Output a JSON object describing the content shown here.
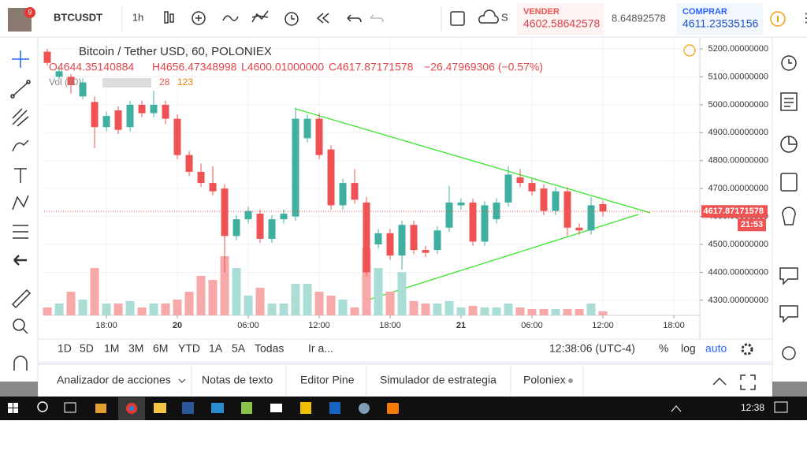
{
  "header": {
    "badge": "9",
    "symbol": "BTCUSDT",
    "interval": "1h",
    "cut_label": "S",
    "sell_label": "VENDER",
    "sell_price": "4602.58642578",
    "spread": "8.64892578",
    "buy_label": "COMPRAR",
    "buy_price": "4611.23535156"
  },
  "legend": {
    "title": "Bitcoin / Tether USD, 60, POLONIEX",
    "open": "O4644.35140884",
    "high": "H4656.47348998",
    "low": "L4600.01000000",
    "close": "C4617.87171578",
    "change": "−26.47969306 (−0.57%)",
    "volume_label": "Vol (10)",
    "volume_a": "28",
    "volume_b": "123"
  },
  "chart_data": {
    "type": "candlestick",
    "open": [
      5190,
      5100,
      5100,
      5030,
      5010,
      4920,
      4980,
      4920,
      5000,
      4970,
      5000,
      4950,
      4820,
      4760,
      4720,
      4700,
      4530,
      4590,
      4610,
      4520,
      4590,
      4600,
      4880,
      4950,
      4840,
      4640,
      4720,
      4650,
      4500,
      4540,
      4460,
      4570,
      4480,
      4480,
      4560,
      4640,
      4650,
      4510,
      4590,
      4650,
      4740,
      4720,
      4700,
      4620,
      4690,
      4560,
      4550,
      4644.35140884
    ],
    "high": [
      5200,
      5135,
      5110,
      5095,
      5030,
      4975,
      4995,
      5015,
      5015,
      5050,
      5015,
      4965,
      4835,
      4790,
      4780,
      4715,
      4605,
      4635,
      4625,
      4605,
      4625,
      4990,
      4965,
      4970,
      4855,
      4735,
      4770,
      4670,
      4555,
      4555,
      4585,
      4585,
      4495,
      4565,
      4710,
      4665,
      4665,
      4655,
      4665,
      4780,
      4770,
      4735,
      4715,
      4705,
      4705,
      4575,
      4670,
      4656.47348998
    ],
    "low": [
      5140,
      5090,
      5040,
      5020,
      4845,
      4905,
      4895,
      4905,
      4955,
      4955,
      4930,
      4805,
      4745,
      4705,
      4675,
      4400,
      4515,
      4575,
      4505,
      4505,
      4575,
      4585,
      4865,
      4805,
      4625,
      4625,
      4645,
      4385,
      4485,
      4445,
      4410,
      4465,
      4455,
      4465,
      4545,
      4625,
      4495,
      4495,
      4575,
      4635,
      4705,
      4675,
      4605,
      4605,
      4530,
      4535,
      4535,
      4600.01
    ],
    "close": [
      5150,
      5120,
      5070,
      5080,
      4920,
      4960,
      4910,
      5000,
      4970,
      5000,
      4950,
      4820,
      4760,
      4720,
      4690,
      4530,
      4590,
      4620,
      4520,
      4590,
      4610,
      4950,
      4950,
      4820,
      4640,
      4720,
      4660,
      4400,
      4540,
      4460,
      4570,
      4480,
      4470,
      4550,
      4650,
      4650,
      4510,
      4640,
      4650,
      4750,
      4720,
      4690,
      4620,
      4690,
      4560,
      4550,
      4640,
      4617.87171578
    ],
    "volume": [
      10,
      15,
      30,
      20,
      60,
      15,
      15,
      18,
      10,
      15,
      15,
      20,
      30,
      50,
      45,
      75,
      60,
      25,
      35,
      15,
      15,
      40,
      40,
      30,
      25,
      20,
      10,
      85,
      60,
      30,
      55,
      18,
      15,
      15,
      18,
      10,
      12,
      10,
      10,
      15,
      10,
      8,
      8,
      8,
      8,
      8,
      15,
      5
    ],
    "up_color": "#3fb0a0",
    "down_color": "#ee5252",
    "up_volume_color": "#a9ddd5",
    "down_volume_color": "#f6a9a8",
    "ylim": [
      4246,
      5234
    ],
    "yticks": [
      {
        "value": 4300,
        "label": "4300.00000000"
      },
      {
        "value": 4400,
        "label": "4400.00000000"
      },
      {
        "value": 4500,
        "label": "4500.00000000"
      },
      {
        "value": 4600,
        "label": "4600.00000000"
      },
      {
        "value": 4700,
        "label": "4700.00000000"
      },
      {
        "value": 4800,
        "label": "4800.00000000"
      },
      {
        "value": 4900,
        "label": "4900.00000000"
      },
      {
        "value": 5000,
        "label": "5000.00000000"
      },
      {
        "value": 5100,
        "label": "5100.00000000"
      },
      {
        "value": 5200,
        "label": "5200.00000000"
      }
    ],
    "xlim": [
      -0.27,
      55.2
    ],
    "xticks": [
      {
        "value": 5,
        "label": "18:00"
      },
      {
        "value": 11,
        "label": "20"
      },
      {
        "value": 17,
        "label": "06:00"
      },
      {
        "value": 23,
        "label": "12:00"
      },
      {
        "value": 29,
        "label": "18:00"
      },
      {
        "value": 35,
        "label": "21"
      },
      {
        "value": 41,
        "label": "06:00"
      },
      {
        "value": 47,
        "label": "12:00"
      },
      {
        "value": 53,
        "label": "18:00"
      }
    ],
    "grid": true,
    "last_price_label": "4617.87171578",
    "countdown": "21:53"
  },
  "range_bar": {
    "ranges": [
      "1D",
      "5D",
      "1M",
      "3M",
      "6M",
      "YTD",
      "1A",
      "5A",
      "Todas"
    ],
    "goto": "Ir a...",
    "clock": "12:38:06 (UTC-4)",
    "percent": "%",
    "log": "log",
    "auto": "auto"
  },
  "tabs": [
    "Analizador de acciones",
    "Notas de texto",
    "Editor Pine",
    "Simulador de estrategia",
    "Poloniex"
  ],
  "taskbar": {
    "time": "12:38"
  }
}
